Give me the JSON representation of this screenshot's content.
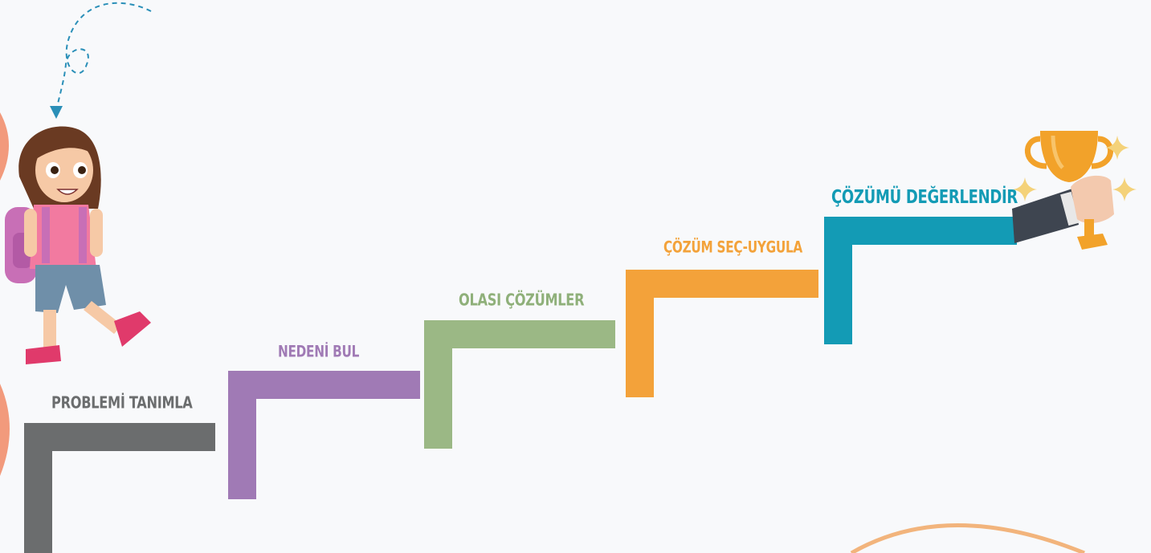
{
  "colors": {
    "step1": "#6b6d6e",
    "step2": "#a07ab5",
    "step3": "#9bb885",
    "step4": "#f3a23a",
    "step5": "#139bb5",
    "accent_dash": "#2a8fb8",
    "blob": "#f29a7c",
    "curve": "#f2b47c"
  },
  "steps": [
    {
      "label": "PROBLEMİ TANIMLA"
    },
    {
      "label": "NEDENİ BUL"
    },
    {
      "label": "OLASI ÇÖZÜMLER"
    },
    {
      "label": "ÇÖZÜM SEÇ-UYGULA"
    },
    {
      "label": "ÇÖZÜMÜ DEĞERLENDİR"
    }
  ],
  "illustrations": {
    "character": "girl-with-backpack-illustration",
    "trophy": "trophy-in-hand-icon",
    "arrow": "dashed-loop-arrow-icon",
    "sparkles": "sparkle-icon"
  }
}
